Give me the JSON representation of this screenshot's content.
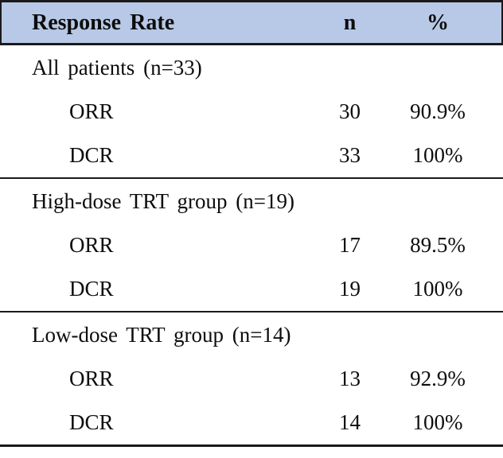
{
  "table": {
    "title": "Response Rate table",
    "colors": {
      "header_bg": "#b7c9e6",
      "rule": "#1a1a1a",
      "text": "#0d0d0d"
    },
    "header": {
      "label": "Response Rate",
      "n": "n",
      "pct": "%"
    },
    "sections": [
      {
        "title": "All patients (n=33)",
        "rows": [
          {
            "label": "ORR",
            "n": "30",
            "pct": "90.9%"
          },
          {
            "label": "DCR",
            "n": "33",
            "pct": "100%"
          }
        ]
      },
      {
        "title": "High-dose TRT group (n=19)",
        "rows": [
          {
            "label": "ORR",
            "n": "17",
            "pct": "89.5%"
          },
          {
            "label": "DCR",
            "n": "19",
            "pct": "100%"
          }
        ]
      },
      {
        "title": "Low-dose TRT group (n=14)",
        "rows": [
          {
            "label": "ORR",
            "n": "13",
            "pct": "92.9%"
          },
          {
            "label": "DCR",
            "n": "14",
            "pct": "100%"
          }
        ]
      }
    ]
  }
}
